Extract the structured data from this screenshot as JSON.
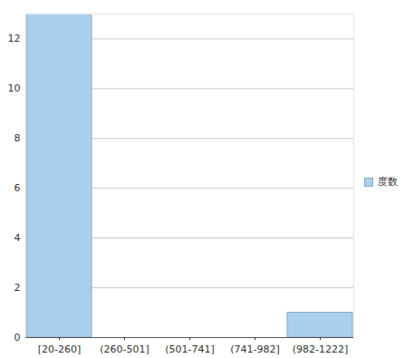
{
  "chart_data": {
    "type": "bar",
    "categories": [
      "[20-260]",
      "(260-501]",
      "(501-741]",
      "(741-982]",
      "(982-1222]"
    ],
    "series": [
      {
        "name": "度数",
        "color": "#abd0ef",
        "values": [
          13,
          0,
          0,
          0,
          1
        ]
      }
    ],
    "ylim": [
      0,
      13
    ],
    "yticks": [
      0,
      2,
      4,
      6,
      8,
      10,
      12
    ],
    "grid": true,
    "legend": "right"
  }
}
